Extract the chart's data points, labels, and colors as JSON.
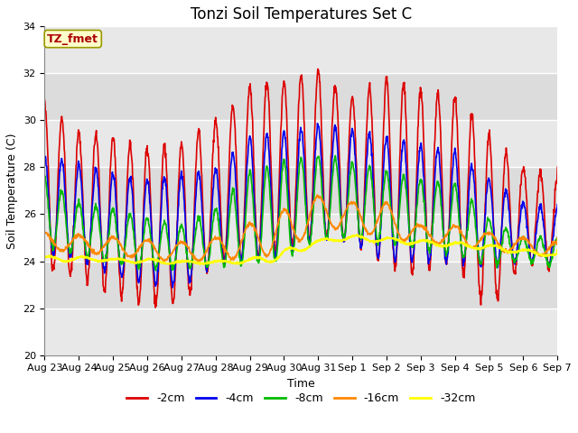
{
  "title": "Tonzi Soil Temperatures Set C",
  "xlabel": "Time",
  "ylabel": "Soil Temperature (C)",
  "ylim": [
    20,
    34
  ],
  "yticks": [
    20,
    22,
    24,
    26,
    28,
    30,
    32,
    34
  ],
  "x_labels": [
    "Aug 23",
    "Aug 24",
    "Aug 25",
    "Aug 26",
    "Aug 27",
    "Aug 28",
    "Aug 29",
    "Aug 30",
    "Aug 31",
    "Sep 1",
    "Sep 2",
    "Sep 3",
    "Sep 4",
    "Sep 5",
    "Sep 6",
    "Sep 7"
  ],
  "series": [
    {
      "label": "-2cm",
      "color": "#DD0000",
      "linewidth": 1.2
    },
    {
      "label": "-4cm",
      "color": "#0000EE",
      "linewidth": 1.2
    },
    {
      "label": "-8cm",
      "color": "#00BB00",
      "linewidth": 1.2
    },
    {
      "label": "-16cm",
      "color": "#FF8800",
      "linewidth": 1.2
    },
    {
      "label": "-32cm",
      "color": "#FFFF00",
      "linewidth": 1.5
    }
  ],
  "annotation_text": "TZ_fmet",
  "annotation_color": "#AA0000",
  "annotation_bg": "#FFFFCC",
  "annotation_border": "#999900",
  "bg_color": "#DCDCDC",
  "band_color": "#C8C8C8",
  "fig_bg": "#FFFFFF",
  "title_fontsize": 12,
  "axis_label_fontsize": 9,
  "tick_fontsize": 8,
  "legend_fontsize": 9
}
